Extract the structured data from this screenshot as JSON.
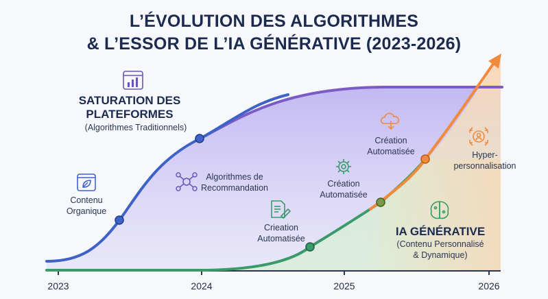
{
  "title": {
    "line1": "L’ÉVOLUTION DES ALGORITHMES",
    "line2": "& L’ESSOR DE L’IA GÉNÉRATIVE (2023-2026)"
  },
  "saturation": {
    "heading_line1": "SATURATION DES",
    "heading_line2": "PLATEFORMES",
    "subtitle": "(Algorithmes Traditionnels)"
  },
  "ia": {
    "heading": "IA GÉNÉRATIVE",
    "subtitle_line1": "(Contenu Personnalisé",
    "subtitle_line2": "& Dynamique)"
  },
  "labels": {
    "contenu_l1": "Contenu",
    "contenu_l2": "Organique",
    "reco_l1": "Algorithmes de",
    "reco_l2": "Recommandation",
    "crieation_l1": "Crieation",
    "crieation_l2": "Automatisée",
    "creation_mid_l1": "Création",
    "creation_mid_l2": "Automatisée",
    "creation_top_l1": "Création",
    "creation_top_l2": "Automatisée",
    "hyper_l1": "Hyper-",
    "hyper_l2": "personnalisation"
  },
  "axis": {
    "ticks": [
      "2023",
      "2024",
      "2025",
      "2026"
    ]
  },
  "icons": [
    "dashboard-icon",
    "leaf-icon",
    "network-icon",
    "document-pen-icon",
    "gear-icon",
    "cloud-hand-icon",
    "brain-icon",
    "target-user-icon"
  ],
  "colors": {
    "blue_curve": "#3f62c7",
    "green_curve": "#3b9a6a",
    "orange_arrow": "#f08a3c",
    "purple_line": "#7a5cc4",
    "purple_fill": "#c9c0f0",
    "green_fill": "#cfead9",
    "orange_fill": "#f8d9bf"
  }
}
